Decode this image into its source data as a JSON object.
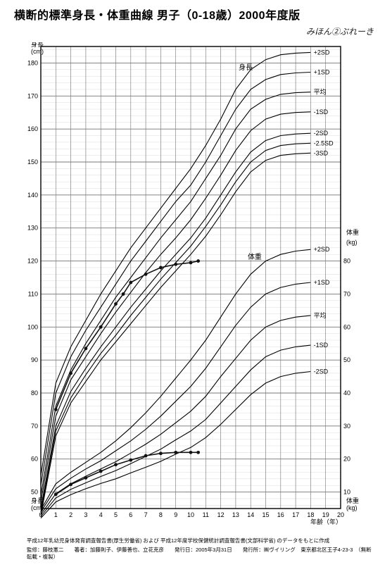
{
  "title": "横断的標準身長・体重曲線 男子（0-18歳）2000年度版",
  "sample_caption": "みほん②ぶれーき",
  "axes": {
    "x": {
      "label": "年齢（年）",
      "min": 0,
      "max": 20,
      "ticks": [
        0,
        1,
        2,
        3,
        4,
        5,
        6,
        7,
        8,
        9,
        10,
        11,
        12,
        13,
        14,
        15,
        16,
        17,
        18,
        19,
        20
      ]
    },
    "y_left_top": {
      "label": "身長\n(cm)",
      "min": 45,
      "max": 185,
      "ticks": [
        50,
        60,
        70,
        80,
        90,
        100,
        110,
        120,
        130,
        140,
        150,
        160,
        170,
        180
      ]
    },
    "y_left_bottom": {
      "label": "身長\n(cm)"
    },
    "y_right_top": {
      "label": "体重\n(kg)"
    },
    "y_right": {
      "label": "体重\n(kg)",
      "min": 0,
      "max": 90,
      "ticks": [
        10,
        20,
        30,
        40,
        50,
        60,
        70,
        80
      ]
    }
  },
  "curve_labels_height": {
    "title": "身長",
    "values": [
      "+2SD",
      "+1SD",
      "平均",
      "-1SD",
      "-2SD",
      "-2.5SD",
      "-3SD"
    ]
  },
  "curve_labels_weight": {
    "title": "体重",
    "values": [
      "+2SD",
      "+1SD",
      "平均",
      "-1SD",
      "-2SD"
    ]
  },
  "colors": {
    "bg": "#ffffff",
    "grid_minor": "#d7d7d7",
    "grid_major": "#777777",
    "curve": "#000000",
    "data_point": "#111111",
    "axis": "#000000",
    "text": "#000000"
  },
  "style": {
    "curve_width": 1.1,
    "major_grid_width": 0.9,
    "minor_grid_width": 0.45,
    "data_line_width": 1.6,
    "data_marker_radius": 2.4,
    "title_fontsize": 16,
    "axis_fontsize": 10,
    "curve_label_fontsize": 9
  },
  "height_curves": [
    {
      "sd": "+2SD",
      "pts": [
        [
          0,
          55
        ],
        [
          1,
          83
        ],
        [
          2,
          94
        ],
        [
          3,
          102
        ],
        [
          4,
          110
        ],
        [
          5,
          117
        ],
        [
          6,
          124
        ],
        [
          7,
          130
        ],
        [
          8,
          136
        ],
        [
          9,
          142
        ],
        [
          10,
          148
        ],
        [
          11,
          155
        ],
        [
          12,
          163
        ],
        [
          13,
          172
        ],
        [
          14,
          178
        ],
        [
          15,
          181
        ],
        [
          16,
          182.5
        ],
        [
          17,
          183
        ],
        [
          18,
          183.2
        ]
      ]
    },
    {
      "sd": "+1SD",
      "pts": [
        [
          0,
          52
        ],
        [
          1,
          80
        ],
        [
          2,
          91
        ],
        [
          3,
          99
        ],
        [
          4,
          106
        ],
        [
          5,
          113
        ],
        [
          6,
          120
        ],
        [
          7,
          126
        ],
        [
          8,
          132
        ],
        [
          9,
          138
        ],
        [
          10,
          143
        ],
        [
          11,
          150
        ],
        [
          12,
          158
        ],
        [
          13,
          166
        ],
        [
          14,
          172
        ],
        [
          15,
          175
        ],
        [
          16,
          176.5
        ],
        [
          17,
          177
        ],
        [
          18,
          177.2
        ]
      ]
    },
    {
      "sd": "平均",
      "pts": [
        [
          0,
          49
        ],
        [
          1,
          76
        ],
        [
          2,
          87
        ],
        [
          3,
          95
        ],
        [
          4,
          102
        ],
        [
          5,
          109
        ],
        [
          6,
          115
        ],
        [
          7,
          121
        ],
        [
          8,
          127
        ],
        [
          9,
          132.5
        ],
        [
          10,
          138
        ],
        [
          11,
          145
        ],
        [
          12,
          152
        ],
        [
          13,
          160
        ],
        [
          14,
          166
        ],
        [
          15,
          169
        ],
        [
          16,
          170.5
        ],
        [
          17,
          171
        ],
        [
          18,
          171.2
        ]
      ]
    },
    {
      "sd": "-1SD",
      "pts": [
        [
          0,
          47
        ],
        [
          1,
          73
        ],
        [
          2,
          84
        ],
        [
          3,
          91
        ],
        [
          4,
          98
        ],
        [
          5,
          104.5
        ],
        [
          6,
          110.5
        ],
        [
          7,
          116.5
        ],
        [
          8,
          122
        ],
        [
          9,
          127
        ],
        [
          10,
          132.5
        ],
        [
          11,
          139
        ],
        [
          12,
          146
        ],
        [
          13,
          153.5
        ],
        [
          14,
          159.5
        ],
        [
          15,
          163
        ],
        [
          16,
          164.5
        ],
        [
          17,
          165
        ],
        [
          18,
          165.2
        ]
      ]
    },
    {
      "sd": "-2SD",
      "pts": [
        [
          0,
          45
        ],
        [
          1,
          70
        ],
        [
          2,
          80.5
        ],
        [
          3,
          87.5
        ],
        [
          4,
          94
        ],
        [
          5,
          100
        ],
        [
          6,
          106
        ],
        [
          7,
          111.5
        ],
        [
          8,
          117
        ],
        [
          9,
          122
        ],
        [
          10,
          127
        ],
        [
          11,
          133
        ],
        [
          12,
          140
        ],
        [
          13,
          147
        ],
        [
          14,
          153
        ],
        [
          15,
          156.5
        ],
        [
          16,
          158
        ],
        [
          17,
          158.5
        ],
        [
          18,
          158.7
        ]
      ]
    },
    {
      "sd": "-2.5SD",
      "pts": [
        [
          0,
          44
        ],
        [
          1,
          68.5
        ],
        [
          2,
          78.5
        ],
        [
          3,
          85.5
        ],
        [
          4,
          92
        ],
        [
          5,
          97.5
        ],
        [
          6,
          103.5
        ],
        [
          7,
          109
        ],
        [
          8,
          114.5
        ],
        [
          9,
          119.5
        ],
        [
          10,
          124.5
        ],
        [
          11,
          130.5
        ],
        [
          12,
          137
        ],
        [
          13,
          144
        ],
        [
          14,
          150
        ],
        [
          15,
          153.5
        ],
        [
          16,
          155
        ],
        [
          17,
          155.5
        ],
        [
          18,
          155.7
        ]
      ]
    },
    {
      "sd": "-3SD",
      "pts": [
        [
          0,
          43
        ],
        [
          1,
          67
        ],
        [
          2,
          77
        ],
        [
          3,
          83.5
        ],
        [
          4,
          90
        ],
        [
          5,
          95.5
        ],
        [
          6,
          101
        ],
        [
          7,
          106.5
        ],
        [
          8,
          112
        ],
        [
          9,
          117
        ],
        [
          10,
          122
        ],
        [
          11,
          127.5
        ],
        [
          12,
          134
        ],
        [
          13,
          141
        ],
        [
          14,
          147
        ],
        [
          15,
          150.5
        ],
        [
          16,
          152
        ],
        [
          17,
          152.5
        ],
        [
          18,
          152.7
        ]
      ]
    }
  ],
  "weight_curves": [
    {
      "sd": "+2SD",
      "pts": [
        [
          0,
          4.6
        ],
        [
          1,
          12.5
        ],
        [
          2,
          16
        ],
        [
          3,
          19
        ],
        [
          4,
          22
        ],
        [
          5,
          25.5
        ],
        [
          6,
          29.5
        ],
        [
          7,
          34
        ],
        [
          8,
          39
        ],
        [
          9,
          44.5
        ],
        [
          10,
          50
        ],
        [
          11,
          56
        ],
        [
          12,
          63
        ],
        [
          13,
          70
        ],
        [
          14,
          76
        ],
        [
          15,
          80
        ],
        [
          16,
          82
        ],
        [
          17,
          83
        ],
        [
          18,
          83.5
        ]
      ]
    },
    {
      "sd": "+1SD",
      "pts": [
        [
          0,
          4
        ],
        [
          1,
          11
        ],
        [
          2,
          14.2
        ],
        [
          3,
          17
        ],
        [
          4,
          19.5
        ],
        [
          5,
          22.5
        ],
        [
          6,
          25.5
        ],
        [
          7,
          29
        ],
        [
          8,
          33
        ],
        [
          9,
          37.5
        ],
        [
          10,
          42
        ],
        [
          11,
          47.5
        ],
        [
          12,
          54
        ],
        [
          13,
          60.5
        ],
        [
          14,
          66
        ],
        [
          15,
          70
        ],
        [
          16,
          72
        ],
        [
          17,
          73
        ],
        [
          18,
          73.5
        ]
      ]
    },
    {
      "sd": "平均",
      "pts": [
        [
          0,
          3.2
        ],
        [
          1,
          9.5
        ],
        [
          2,
          12.5
        ],
        [
          3,
          14.8
        ],
        [
          4,
          17
        ],
        [
          5,
          19.2
        ],
        [
          6,
          21.8
        ],
        [
          7,
          24.5
        ],
        [
          8,
          27.5
        ],
        [
          9,
          31
        ],
        [
          10,
          34.5
        ],
        [
          11,
          39
        ],
        [
          12,
          45
        ],
        [
          13,
          50.5
        ],
        [
          14,
          56
        ],
        [
          15,
          60
        ],
        [
          16,
          62
        ],
        [
          17,
          63
        ],
        [
          18,
          63.5
        ]
      ]
    },
    {
      "sd": "-1SD",
      "pts": [
        [
          0,
          2.6
        ],
        [
          1,
          8.2
        ],
        [
          2,
          10.8
        ],
        [
          3,
          12.8
        ],
        [
          4,
          14.7
        ],
        [
          5,
          16.5
        ],
        [
          6,
          18.6
        ],
        [
          7,
          20.8
        ],
        [
          8,
          23
        ],
        [
          9,
          25.8
        ],
        [
          10,
          28.5
        ],
        [
          11,
          32
        ],
        [
          12,
          37
        ],
        [
          13,
          42
        ],
        [
          14,
          47
        ],
        [
          15,
          51
        ],
        [
          16,
          53
        ],
        [
          17,
          54
        ],
        [
          18,
          54.5
        ]
      ]
    },
    {
      "sd": "-2SD",
      "pts": [
        [
          0,
          2.1
        ],
        [
          1,
          7
        ],
        [
          2,
          9.2
        ],
        [
          3,
          11
        ],
        [
          4,
          12.6
        ],
        [
          5,
          14
        ],
        [
          6,
          15.8
        ],
        [
          7,
          17.5
        ],
        [
          8,
          19.3
        ],
        [
          9,
          21.5
        ],
        [
          10,
          23.5
        ],
        [
          11,
          26.5
        ],
        [
          12,
          30.5
        ],
        [
          13,
          35
        ],
        [
          14,
          39.5
        ],
        [
          15,
          43
        ],
        [
          16,
          45
        ],
        [
          17,
          46
        ],
        [
          18,
          46.5
        ]
      ]
    }
  ],
  "patient_height": [
    [
      1,
      75
    ],
    [
      2,
      86
    ],
    [
      3,
      93.5
    ],
    [
      4,
      100
    ],
    [
      5,
      107
    ],
    [
      5.5,
      110
    ],
    [
      6,
      113.5
    ],
    [
      7,
      116
    ],
    [
      8,
      118
    ],
    [
      9,
      119
    ],
    [
      10,
      119.5
    ],
    [
      10.5,
      120
    ]
  ],
  "patient_weight": [
    [
      1,
      9.3
    ],
    [
      2,
      12.3
    ],
    [
      3,
      14.3
    ],
    [
      4,
      16.3
    ],
    [
      5,
      18.3
    ],
    [
      6,
      19.7
    ],
    [
      7,
      21
    ],
    [
      8,
      21.7
    ],
    [
      9,
      22
    ],
    [
      10,
      22
    ],
    [
      10.5,
      22
    ]
  ],
  "footer_line1": "平成12年乳幼児身体発育調査報告書(厚生労働省) および 平成12年度学校保健統計調査報告書(文部科学省) のデータをもとに作成",
  "footer_line2": "監修：藤枝憲二　　著者：加藤則子、伊藤善也、立花克彦　　発行日：2005年3月31日　　発行所：㈱ヴイリング　東京都北区王子4-23-3　（無断転載・複製）"
}
